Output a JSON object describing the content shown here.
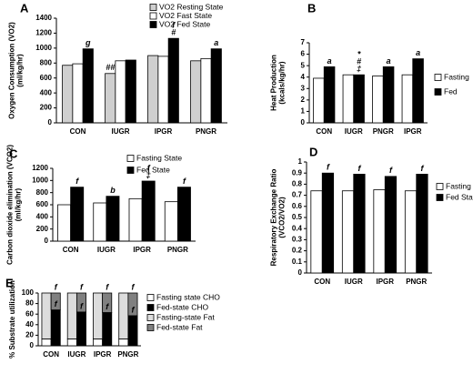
{
  "chart_data": [
    {
      "type": "bar",
      "label": "A",
      "ylabel": [
        "Oxygen Consumption (VO2)",
        "(ml/kg/hr)"
      ],
      "categories": [
        "CON",
        "IUGR",
        "IPGR",
        "PNGR"
      ],
      "series": [
        {
          "name": "VO2  Resting State",
          "color": "#cfcfcf",
          "values": [
            770,
            660,
            900,
            830
          ]
        },
        {
          "name": "VO2 Fast State",
          "color": "#ffffff",
          "values": [
            790,
            830,
            890,
            860
          ]
        },
        {
          "name": "VO2 Fed State",
          "color": "#000000",
          "values": [
            990,
            840,
            1130,
            990
          ]
        }
      ],
      "ylim": [
        0,
        1400
      ],
      "yticks": [
        0,
        200,
        400,
        600,
        800,
        1000,
        1200,
        1400
      ],
      "annotations": [
        {
          "text": "g",
          "category": 0,
          "series": 2
        },
        {
          "text": "##",
          "category": 1,
          "series": 0
        },
        {
          "text": "#",
          "category": 2,
          "series": 2
        },
        {
          "text": "f",
          "category": 2,
          "series": 2
        },
        {
          "text": "a",
          "category": 3,
          "series": 2
        }
      ]
    },
    {
      "type": "bar",
      "label": "B",
      "ylabel": [
        "Heat Production",
        "(kcals/kg/hr)"
      ],
      "categories": [
        "CON",
        "IUGR",
        "PNGR",
        "IPGR"
      ],
      "series": [
        {
          "name": "Fasting",
          "color": "#ffffff",
          "values": [
            3.9,
            4.2,
            4.1,
            4.2
          ]
        },
        {
          "name": "Fed",
          "color": "#000000",
          "values": [
            4.9,
            4.2,
            4.9,
            5.6
          ]
        }
      ],
      "ylim": [
        0,
        7
      ],
      "yticks": [
        0,
        1,
        2,
        3,
        4,
        5,
        6,
        7
      ],
      "annotations": [
        {
          "text": "a",
          "category": 0,
          "series": 1
        },
        {
          "text": "‡",
          "category": 1,
          "series": 1
        },
        {
          "text": "#",
          "category": 1,
          "series": 1
        },
        {
          "text": "*",
          "category": 1,
          "series": 1
        },
        {
          "text": "a",
          "category": 2,
          "series": 1
        },
        {
          "text": "a",
          "category": 3,
          "series": 1
        }
      ]
    },
    {
      "type": "bar",
      "label": "C",
      "ylabel": [
        "Carbon dioxide elimination (VCO2)",
        "(ml/kg/hr)"
      ],
      "categories": [
        "CON",
        "IUGR",
        "IPGR",
        "PNGR"
      ],
      "series": [
        {
          "name": "Fasting State",
          "color": "#ffffff",
          "values": [
            600,
            630,
            700,
            650
          ]
        },
        {
          "name": "Fed State",
          "color": "#000000",
          "values": [
            890,
            740,
            990,
            890
          ]
        }
      ],
      "ylim": [
        0,
        1200
      ],
      "yticks": [
        0,
        200,
        400,
        600,
        800,
        1000,
        1200
      ],
      "annotations": [
        {
          "text": "f",
          "category": 0,
          "series": 1
        },
        {
          "text": "b",
          "category": 1,
          "series": 1
        },
        {
          "text": "‡",
          "category": 2,
          "series": 1
        },
        {
          "text": "f",
          "category": 2,
          "series": 1
        },
        {
          "text": "f",
          "category": 3,
          "series": 1
        }
      ]
    },
    {
      "type": "bar",
      "label": "D",
      "ylabel": [
        "Respiratory Exchange Ratio",
        "(VCO2/VO2)"
      ],
      "categories": [
        "CON",
        "IUGR",
        "IPGR",
        "PNGR"
      ],
      "series": [
        {
          "name": "Fasting State",
          "color": "#ffffff",
          "values": [
            0.74,
            0.74,
            0.75,
            0.74
          ]
        },
        {
          "name": "Fed State",
          "color": "#000000",
          "values": [
            0.9,
            0.89,
            0.87,
            0.89
          ]
        }
      ],
      "ylim": [
        0,
        1
      ],
      "yticks": [
        0,
        0.1,
        0.2,
        0.3,
        0.4,
        0.5,
        0.6,
        0.7,
        0.8,
        0.9,
        1
      ],
      "annotations": [
        {
          "text": "f",
          "category": 0,
          "series": 1
        },
        {
          "text": "f",
          "category": 1,
          "series": 1
        },
        {
          "text": "f",
          "category": 2,
          "series": 1
        },
        {
          "text": "f",
          "category": 3,
          "series": 1
        }
      ]
    },
    {
      "type": "stacked_bar",
      "label": "E",
      "ylabel": [
        "% Substrate utilization"
      ],
      "categories": [
        "CON",
        "IUGR",
        "IPGR",
        "PNGR"
      ],
      "series": [
        {
          "name": "Fasting state CHO",
          "color": "#ffffff",
          "stack": 0,
          "values": [
            13,
            13,
            13,
            13
          ]
        },
        {
          "name": "Fed-state CHO",
          "color": "#000000",
          "stack": 1,
          "values": [
            68,
            64,
            63,
            57
          ]
        },
        {
          "name": "Fasting-state Fat",
          "color": "#dcdcdc",
          "stack": 0,
          "values": [
            87,
            87,
            87,
            87
          ]
        },
        {
          "name": "Fed-state Fat",
          "color": "#808080",
          "stack": 1,
          "values": [
            32,
            36,
            37,
            43
          ]
        }
      ],
      "ylim": [
        0,
        100
      ],
      "yticks": [
        0,
        20,
        40,
        60,
        80,
        100
      ],
      "annotations": [
        {
          "text": "f",
          "category": 0,
          "series": 1
        },
        {
          "text": "f",
          "category": 0,
          "series": 3
        },
        {
          "text": "f",
          "category": 1,
          "series": 1
        },
        {
          "text": "f",
          "category": 1,
          "series": 3
        },
        {
          "text": "f",
          "category": 2,
          "series": 1
        },
        {
          "text": "f",
          "category": 2,
          "series": 3
        },
        {
          "text": "f",
          "category": 3,
          "series": 1
        },
        {
          "text": "f",
          "category": 3,
          "series": 3
        }
      ]
    }
  ]
}
